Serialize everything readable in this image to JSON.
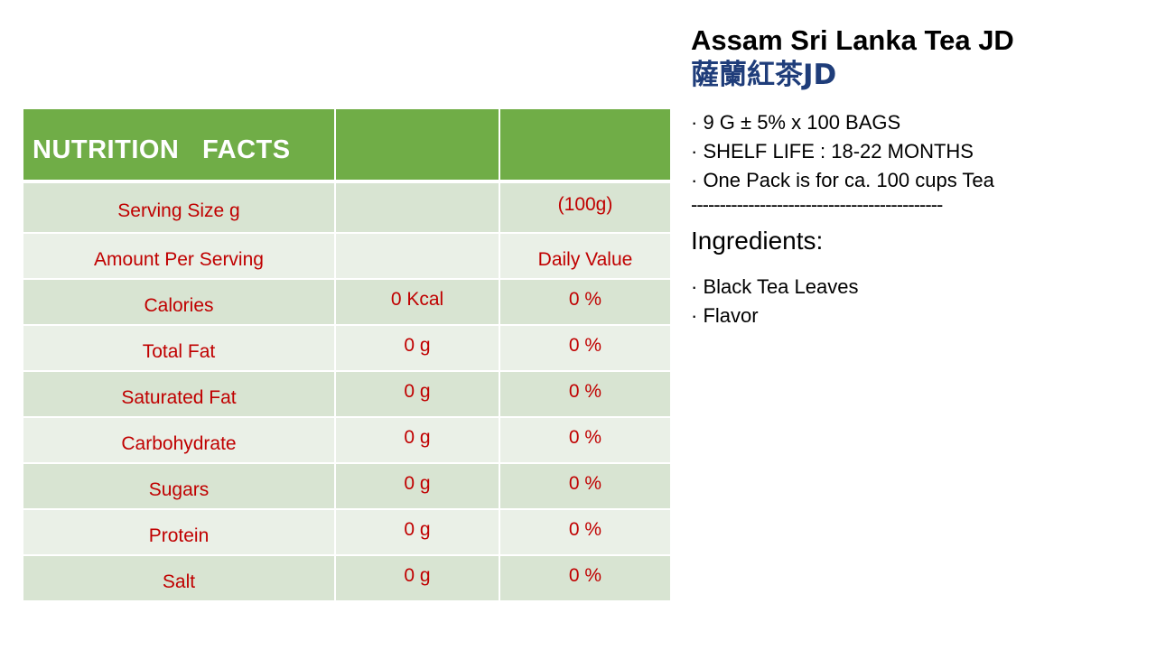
{
  "nutrition": {
    "title": "NUTRITION   FACTS",
    "rows": [
      {
        "label": "Serving Size g",
        "amount": "",
        "daily": "(100g)"
      },
      {
        "label": "Amount Per Serving",
        "amount": "",
        "daily": "Daily Value"
      },
      {
        "label": "Calories",
        "amount": "0 Kcal",
        "daily": "0 %"
      },
      {
        "label": "Total Fat",
        "amount": "0 g",
        "daily": "0 %"
      },
      {
        "label": "Saturated Fat",
        "amount": "0 g",
        "daily": "0 %"
      },
      {
        "label": "Carbohydrate",
        "amount": "0 g",
        "daily": "0 %"
      },
      {
        "label": "Sugars",
        "amount": "0 g",
        "daily": "0 %"
      },
      {
        "label": "Protein",
        "amount": "0 g",
        "daily": "0 %"
      },
      {
        "label": "Salt",
        "amount": "0 g",
        "daily": "0 %"
      }
    ]
  },
  "product": {
    "name": "Assam Sri Lanka Tea JD",
    "name_cn": "薩蘭紅茶",
    "name_cn_suffix": "JD",
    "specs": [
      "· 9 G ± 5% x 100 BAGS",
      "· SHELF LIFE : 18-22 MONTHS",
      "· One Pack is for ca. 100 cups Tea"
    ],
    "divider": "--------------------------------------------",
    "ingredients_title": "Ingredients:",
    "ingredients": [
      "· Black Tea Leaves",
      "· Flavor"
    ]
  },
  "colors": {
    "header_green": "#70ad47",
    "row_dark": "#d8e4d2",
    "row_light": "#eaf0e7",
    "value_red": "#c00000",
    "cn_blue": "#1f3d7a"
  }
}
